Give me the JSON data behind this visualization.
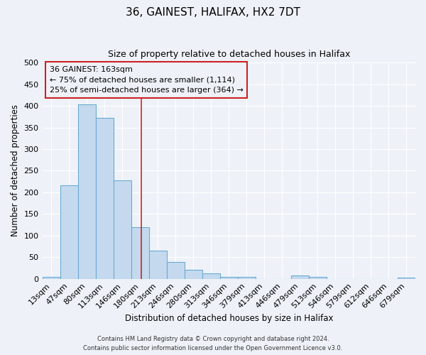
{
  "title": "36, GAINEST, HALIFAX, HX2 7DT",
  "subtitle": "Size of property relative to detached houses in Halifax",
  "xlabel": "Distribution of detached houses by size in Halifax",
  "ylabel": "Number of detached properties",
  "bar_labels": [
    "13sqm",
    "47sqm",
    "80sqm",
    "113sqm",
    "146sqm",
    "180sqm",
    "213sqm",
    "246sqm",
    "280sqm",
    "313sqm",
    "346sqm",
    "379sqm",
    "413sqm",
    "446sqm",
    "479sqm",
    "513sqm",
    "546sqm",
    "579sqm",
    "612sqm",
    "646sqm",
    "679sqm"
  ],
  "bar_values": [
    4,
    216,
    403,
    373,
    228,
    120,
    65,
    39,
    20,
    13,
    5,
    5,
    0,
    0,
    7,
    5,
    0,
    0,
    0,
    0,
    3
  ],
  "bar_color": "#c5d9ee",
  "bar_edge_color": "#6aaad4",
  "ylim": [
    0,
    500
  ],
  "yticks": [
    0,
    50,
    100,
    150,
    200,
    250,
    300,
    350,
    400,
    450,
    500
  ],
  "vline_x": 5.09,
  "vline_color": "#cc2222",
  "annotation_title": "36 GAINEST: 163sqm",
  "annotation_line1": "← 75% of detached houses are smaller (1,114)",
  "annotation_line2": "25% of semi-detached houses are larger (364) →",
  "annotation_box_color": "#cc2222",
  "footer_line1": "Contains HM Land Registry data © Crown copyright and database right 2024.",
  "footer_line2": "Contains public sector information licensed under the Open Government Licence v3.0.",
  "bg_color": "#eef2f8",
  "grid_color": "#ffffff",
  "fig_width": 6.0,
  "fig_height": 5.0
}
